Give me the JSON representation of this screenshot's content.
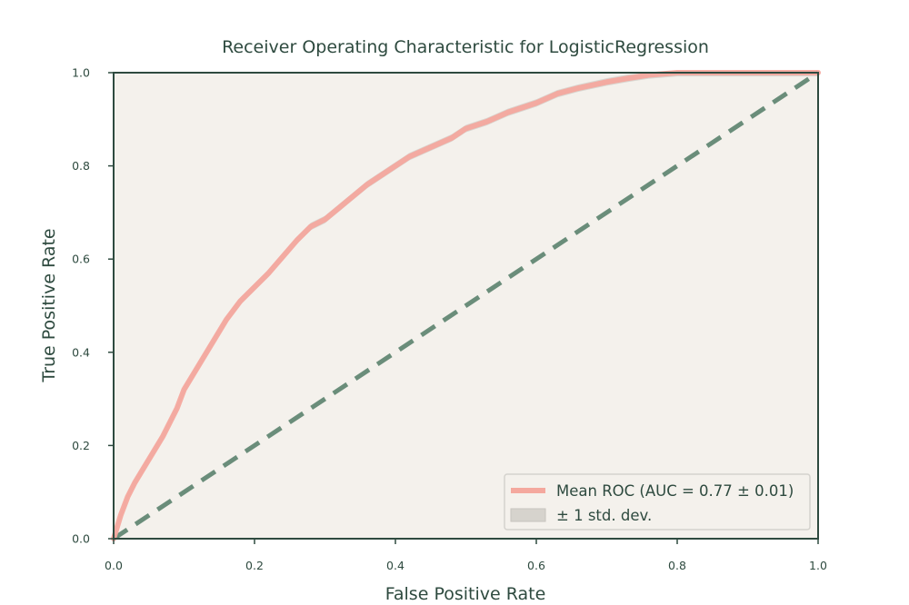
{
  "chart_data": {
    "type": "line",
    "title": "Receiver Operating Characteristic for LogisticRegression",
    "xlabel": "False Positive Rate",
    "ylabel": "True Positive Rate",
    "xlim": [
      0.0,
      1.0
    ],
    "ylim": [
      0.0,
      1.0
    ],
    "xticks": [
      "0.0",
      "0.2",
      "0.4",
      "0.6",
      "0.8",
      "1.0"
    ],
    "yticks": [
      "0.0",
      "0.2",
      "0.4",
      "0.6",
      "0.8",
      "1.0"
    ],
    "grid": false,
    "legend_position": "bottom-right",
    "series": [
      {
        "name": "Mean ROC (AUC = 0.77 ± 0.01)",
        "color": "#f4a89e",
        "x": [
          0.0,
          0.01,
          0.02,
          0.03,
          0.05,
          0.07,
          0.08,
          0.09,
          0.1,
          0.12,
          0.14,
          0.16,
          0.18,
          0.2,
          0.22,
          0.24,
          0.26,
          0.28,
          0.3,
          0.32,
          0.34,
          0.36,
          0.38,
          0.4,
          0.42,
          0.45,
          0.48,
          0.5,
          0.53,
          0.56,
          0.6,
          0.63,
          0.66,
          0.7,
          0.73,
          0.76,
          0.8,
          0.85,
          0.9,
          0.95,
          1.0
        ],
        "y": [
          0.0,
          0.05,
          0.09,
          0.12,
          0.17,
          0.22,
          0.25,
          0.28,
          0.32,
          0.37,
          0.42,
          0.47,
          0.51,
          0.54,
          0.57,
          0.605,
          0.64,
          0.67,
          0.685,
          0.71,
          0.735,
          0.76,
          0.78,
          0.8,
          0.82,
          0.84,
          0.86,
          0.88,
          0.895,
          0.915,
          0.935,
          0.955,
          0.967,
          0.98,
          0.988,
          0.995,
          1.0,
          1.0,
          1.0,
          1.0,
          1.0
        ]
      },
      {
        "name": "± 1 std. dev.",
        "color": "#d6d3cd",
        "type": "area"
      },
      {
        "name": "",
        "color": "#6a8d7a",
        "style": "dashed",
        "x": [
          0.0,
          1.0
        ],
        "y": [
          0.0,
          1.0
        ]
      }
    ]
  }
}
